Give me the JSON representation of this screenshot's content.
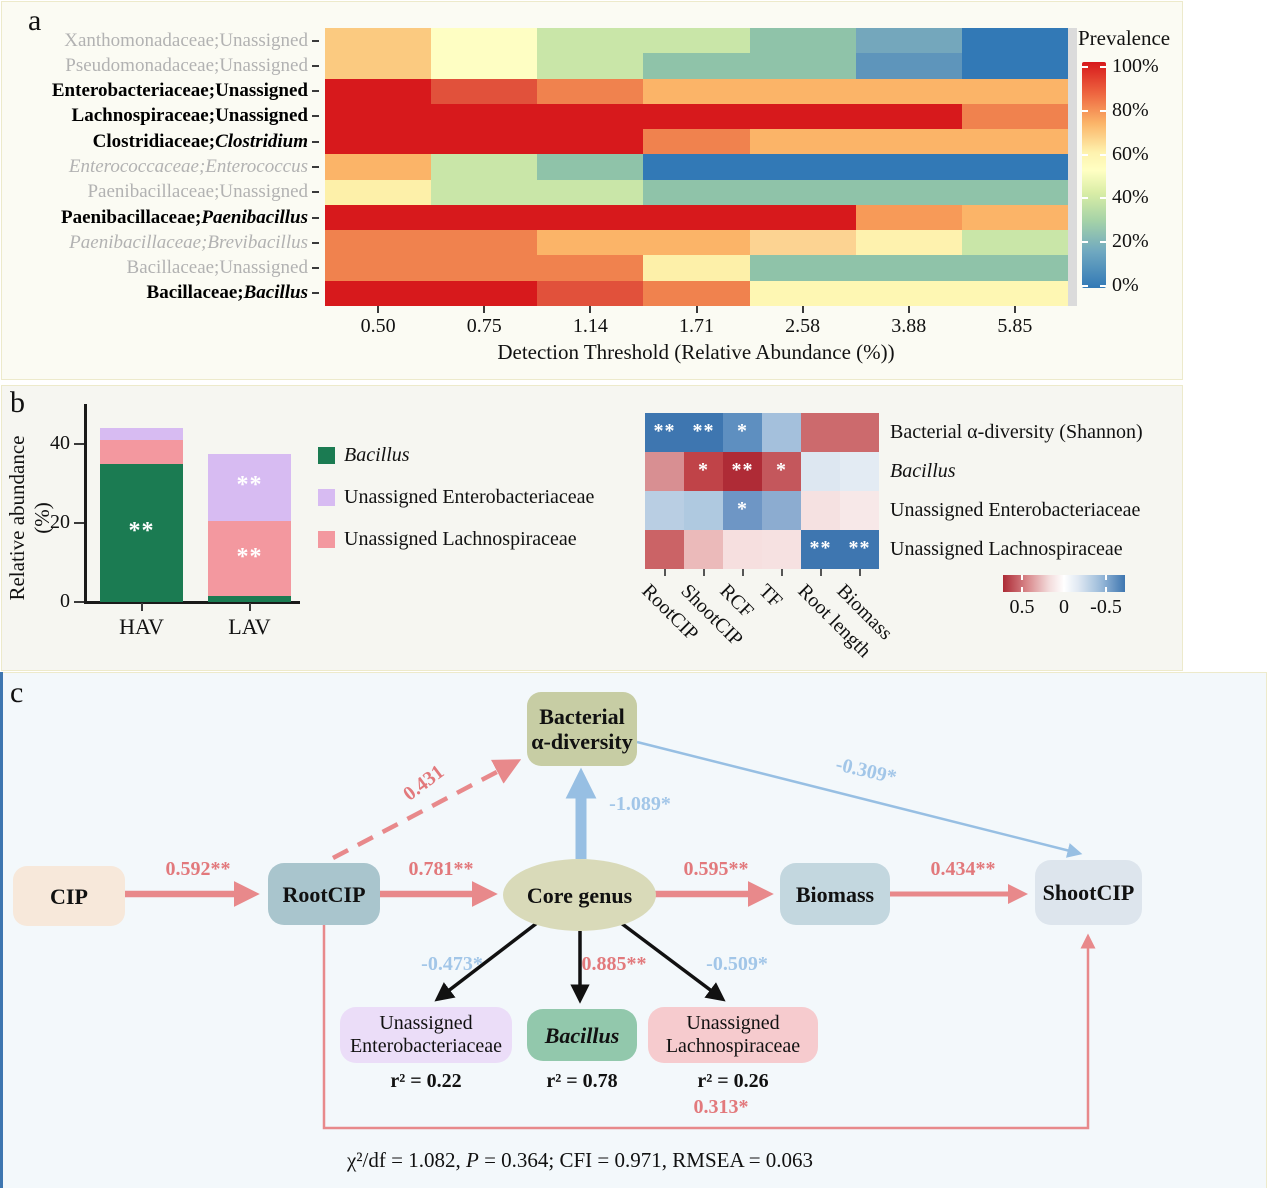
{
  "panel_a": {
    "label": "a",
    "rows": [
      {
        "style": "dim",
        "parts": [
          {
            "t": "Xanthomonadaceae;Unassigned"
          }
        ]
      },
      {
        "style": "dim",
        "parts": [
          {
            "t": "Pseudomonadaceae;Unassigned"
          }
        ]
      },
      {
        "style": "bold",
        "parts": [
          {
            "t": "Enterobacteriaceae;Unassigned"
          }
        ]
      },
      {
        "style": "bold",
        "parts": [
          {
            "t": "Lachnospiraceae;Unassigned"
          }
        ]
      },
      {
        "style": "bold",
        "parts": [
          {
            "t": "Clostridiaceae;"
          },
          {
            "t": "Clostridium",
            "i": true
          }
        ]
      },
      {
        "style": "dim",
        "parts": [
          {
            "t": "Enterococcaceae;Enterococcus",
            "i": true
          }
        ]
      },
      {
        "style": "dim",
        "parts": [
          {
            "t": "Paenibacillaceae;Unassigned"
          }
        ]
      },
      {
        "style": "bold",
        "parts": [
          {
            "t": "Paenibacillaceae;"
          },
          {
            "t": "Paenibacillus",
            "i": true
          }
        ]
      },
      {
        "style": "dim",
        "parts": [
          {
            "t": "Paenibacillaceae;Brevibacillus",
            "i": true
          }
        ]
      },
      {
        "style": "dim",
        "parts": [
          {
            "t": "Bacillaceae;Unassigned"
          }
        ]
      },
      {
        "style": "bold",
        "parts": [
          {
            "t": "Bacillaceae;"
          },
          {
            "t": "Bacillus",
            "i": true
          }
        ]
      }
    ],
    "cell_colors": [
      [
        "#FBCA80",
        "#FEFEC3",
        "#C9E6A8",
        "#C9E6A8",
        "#8FC3A9",
        "#74A7BC",
        "#3279B6"
      ],
      [
        "#FBCA80",
        "#FEFEC3",
        "#C9E6A8",
        "#8FC3A9",
        "#8FC3A9",
        "#5E95BB",
        "#3279B6"
      ],
      [
        "#D7191C",
        "#E1513B",
        "#F0824E",
        "#FBB468",
        "#FBB468",
        "#FBB468",
        "#FBB468"
      ],
      [
        "#D7191C",
        "#D7191C",
        "#D7191C",
        "#D7191C",
        "#D7191C",
        "#D7191C",
        "#F0824E"
      ],
      [
        "#D7191C",
        "#D7191C",
        "#D7191C",
        "#F0824E",
        "#FBB468",
        "#FBB468",
        "#FBB468"
      ],
      [
        "#FBB468",
        "#C9E6A8",
        "#8FC3A9",
        "#3279B6",
        "#3279B6",
        "#3279B6",
        "#3279B6"
      ],
      [
        "#FDF0A9",
        "#C9E6A8",
        "#C9E6A8",
        "#8FC3A9",
        "#8FC3A9",
        "#8FC3A9",
        "#8FC3A9"
      ],
      [
        "#D7191C",
        "#D7191C",
        "#D7191C",
        "#D7191C",
        "#D7191C",
        "#F79A58",
        "#FBB468"
      ],
      [
        "#F0824E",
        "#F0824E",
        "#FBB468",
        "#FBB468",
        "#FCD392",
        "#FEF2AE",
        "#C9E6A8"
      ],
      [
        "#F0824E",
        "#F0824E",
        "#F0824E",
        "#FDF0A9",
        "#8FC3A9",
        "#8FC3A9",
        "#8FC3A9"
      ],
      [
        "#D7191C",
        "#D7191C",
        "#E1513B",
        "#F0824E",
        "#FEF7B3",
        "#FEF7B3",
        "#FEF7B3"
      ]
    ],
    "x_ticks": [
      "0.50",
      "0.75",
      "1.14",
      "1.71",
      "2.58",
      "3.88",
      "5.85"
    ],
    "x_title": "Detection Threshold (Relative Abundance (%))",
    "colorbar": {
      "title": "Prevalence",
      "labels": [
        "100%",
        "80%",
        "60%",
        "40%",
        "20%",
        "0%"
      ]
    }
  },
  "panel_b": {
    "label": "b",
    "bar": {
      "y_title": "Relative abundance (%)",
      "y_ticks": [
        "40",
        "20",
        "0"
      ],
      "y_tick_values": [
        40,
        20,
        0
      ],
      "categories": [
        "HAV",
        "LAV"
      ],
      "series": [
        {
          "name": "Bacillus",
          "color": "#1B7B52",
          "values": [
            35,
            1.5
          ],
          "sig": [
            "**",
            ""
          ]
        },
        {
          "name": "Unassigned Lachnospiraceae",
          "color": "#F3989F",
          "values": [
            6,
            19
          ],
          "sig": [
            "",
            "**"
          ]
        },
        {
          "name": "Unassigned Enterobacteriaceae",
          "color": "#D7BBF2",
          "values": [
            3,
            17
          ],
          "sig": [
            "",
            "**"
          ]
        }
      ]
    },
    "legend": [
      {
        "label": "Bacillus",
        "color": "#1B7B52",
        "italic": true
      },
      {
        "label": "Unassigned Enterobacteriaceae",
        "color": "#D7BBF2",
        "italic": false
      },
      {
        "label": "Unassigned Lachnospiraceae",
        "color": "#F3989F",
        "italic": false
      }
    ],
    "corr": {
      "row_labels": [
        "Bacterial α-diversity (Shannon)",
        "Bacillus",
        "Unassigned Enterobacteriaceae",
        "Unassigned Lachnospiraceae"
      ],
      "row_italic": [
        false,
        true,
        false,
        false
      ],
      "col_labels": [
        "RootCIP",
        "ShootCIP",
        "RCF",
        "TF",
        "Root length",
        "Biomass"
      ],
      "cell_colors": [
        [
          "#3E76B0",
          "#3E76B0",
          "#5E8FC0",
          "#A4C0DC",
          "#CC6A6D",
          "#CC6A6D"
        ],
        [
          "#D88F92",
          "#C04348",
          "#AF2B36",
          "#C4575C",
          "#DDE7F1",
          "#E3EBF3"
        ],
        [
          "#B9CEE3",
          "#AFC9E0",
          "#6E96C5",
          "#8CACD0",
          "#F5E1E1",
          "#F7E8E8"
        ],
        [
          "#CB6366",
          "#EBBABA",
          "#F6DFDF",
          "#F6E1E1",
          "#3E76B0",
          "#3E76B0"
        ]
      ],
      "sig": [
        [
          "**",
          "**",
          "*",
          "",
          "",
          ""
        ],
        [
          "",
          "*",
          "**",
          "*",
          "",
          ""
        ],
        [
          "",
          "",
          "*",
          "",
          "",
          ""
        ],
        [
          "",
          "",
          "",
          "",
          "**",
          "**"
        ]
      ],
      "colorbar_labels": [
        "0.5",
        "0",
        "-0.5"
      ]
    }
  },
  "panel_c": {
    "label": "c",
    "nodes": {
      "cip": {
        "lines": [
          "CIP"
        ],
        "color": "#F7E8DA"
      },
      "rootcip": {
        "lines": [
          "RootCIP"
        ],
        "color": "#A9C5CD"
      },
      "core": {
        "lines": [
          "Core genus"
        ],
        "color": "#D9DAB9"
      },
      "alpha": {
        "lines": [
          "Bacterial",
          "α-diversity"
        ],
        "color": "#C7CDA4"
      },
      "biomass": {
        "lines": [
          "Biomass"
        ],
        "color": "#C3D7DF"
      },
      "shootcip": {
        "lines": [
          "ShootCIP"
        ],
        "color": "#DDE5ED"
      },
      "entero": {
        "lines": [
          "Unassigned",
          "Enterobacteriaceae"
        ],
        "color": "#EBDDF8"
      },
      "bacillus": {
        "lines": [
          "Bacillus"
        ],
        "color": "#92C8AC",
        "italic": true
      },
      "lachno": {
        "lines": [
          "Unassigned",
          "Lachnospiraceae"
        ],
        "color": "#F6CBCE"
      }
    },
    "edges": [
      {
        "from": "CIP",
        "to": "RootCIP",
        "label": "0.592**",
        "sign": "pos"
      },
      {
        "from": "RootCIP",
        "to": "Core genus",
        "label": "0.781**",
        "sign": "pos"
      },
      {
        "from": "Core genus",
        "to": "Biomass",
        "label": "0.595**",
        "sign": "pos"
      },
      {
        "from": "Biomass",
        "to": "ShootCIP",
        "label": "0.434**",
        "sign": "pos"
      },
      {
        "from": "RootCIP",
        "to": "Bacterial α-diversity",
        "label": "0.431",
        "sign": "pos",
        "style": "dashed"
      },
      {
        "from": "Core genus",
        "to": "Bacterial α-diversity",
        "label": "-1.089*",
        "sign": "neg"
      },
      {
        "from": "Bacterial α-diversity",
        "to": "ShootCIP",
        "label": "-0.309*",
        "sign": "neg"
      },
      {
        "from": "Core genus",
        "to": "Unassigned Enterobacteriaceae",
        "label": "-0.473*",
        "sign": "neg"
      },
      {
        "from": "Core genus",
        "to": "Bacillus",
        "label": "0.885**",
        "sign": "pos"
      },
      {
        "from": "Core genus",
        "to": "Unassigned Lachnospiraceae",
        "label": "-0.509*",
        "sign": "neg"
      },
      {
        "from": "RootCIP",
        "to": "ShootCIP",
        "label": "0.313*",
        "sign": "pos"
      }
    ],
    "r2": [
      "r² = 0.22",
      "r² = 0.78",
      "r² = 0.26"
    ],
    "fit_parts": [
      {
        "t": "χ²/df = 1.082, "
      },
      {
        "t": "P",
        "i": true
      },
      {
        "t": " = 0.364; CFI = 0.971, RMSEA = 0.063"
      }
    ]
  },
  "chart_data": [
    {
      "type": "heatmap",
      "title": "Core taxa prevalence vs detection threshold",
      "xlabel": "Detection Threshold (Relative Abundance (%))",
      "x": [
        "0.50",
        "0.75",
        "1.14",
        "1.71",
        "2.58",
        "3.88",
        "5.85"
      ],
      "y": [
        "Xanthomonadaceae;Unassigned",
        "Pseudomonadaceae;Unassigned",
        "Enterobacteriaceae;Unassigned",
        "Lachnospiraceae;Unassigned",
        "Clostridiaceae;Clostridium",
        "Enterococcaceae;Enterococcus",
        "Paenibacillaceae;Unassigned",
        "Paenibacillaceae;Paenibacillus",
        "Paenibacillaceae;Brevibacillus",
        "Bacillaceae;Unassigned",
        "Bacillaceae;Bacillus"
      ],
      "values_percent": [
        [
          68,
          50,
          38,
          38,
          22,
          12,
          2
        ],
        [
          68,
          50,
          38,
          22,
          22,
          8,
          2
        ],
        [
          100,
          92,
          82,
          72,
          72,
          72,
          72
        ],
        [
          100,
          100,
          100,
          100,
          100,
          100,
          82
        ],
        [
          100,
          100,
          100,
          82,
          72,
          72,
          72
        ],
        [
          72,
          38,
          22,
          2,
          2,
          2,
          2
        ],
        [
          57,
          38,
          38,
          22,
          22,
          22,
          22
        ],
        [
          100,
          100,
          100,
          100,
          100,
          78,
          72
        ],
        [
          82,
          82,
          72,
          72,
          64,
          56,
          38
        ],
        [
          82,
          82,
          82,
          57,
          22,
          22,
          22
        ],
        [
          100,
          100,
          92,
          82,
          54,
          54,
          54
        ]
      ],
      "legend": {
        "title": "Prevalence",
        "range": [
          "0%",
          "100%"
        ],
        "position": "right"
      }
    },
    {
      "type": "bar",
      "subtype": "stacked",
      "categories": [
        "HAV",
        "LAV"
      ],
      "series": [
        {
          "name": "Bacillus",
          "values": [
            35,
            1.5
          ]
        },
        {
          "name": "Unassigned Lachnospiraceae",
          "values": [
            6,
            19
          ]
        },
        {
          "name": "Unassigned Enterobacteriaceae",
          "values": [
            3,
            17
          ]
        }
      ],
      "significance": [
        {
          "category": "HAV",
          "series": "Bacillus",
          "mark": "**"
        },
        {
          "category": "LAV",
          "series": "Unassigned Enterobacteriaceae",
          "mark": "**"
        },
        {
          "category": "LAV",
          "series": "Unassigned Lachnospiraceae",
          "mark": "**"
        }
      ],
      "ylabel": "Relative abundance (%)",
      "ylim": [
        0,
        48
      ],
      "y_ticks": [
        0,
        20,
        40
      ]
    },
    {
      "type": "heatmap",
      "subtype": "correlation",
      "x": [
        "RootCIP",
        "ShootCIP",
        "RCF",
        "TF",
        "Root length",
        "Biomass"
      ],
      "y": [
        "Bacterial α-diversity (Shannon)",
        "Bacillus",
        "Unassigned Enterobacteriaceae",
        "Unassigned Lachnospiraceae"
      ],
      "r_values": [
        [
          -0.45,
          -0.45,
          -0.35,
          -0.15,
          0.3,
          0.3
        ],
        [
          0.25,
          0.42,
          0.5,
          0.4,
          -0.08,
          -0.05
        ],
        [
          -0.18,
          -0.2,
          -0.35,
          -0.28,
          0.06,
          0.04
        ],
        [
          0.32,
          0.15,
          0.07,
          0.06,
          -0.45,
          -0.45
        ]
      ],
      "significance": [
        [
          "**",
          "**",
          "*",
          "",
          "",
          ""
        ],
        [
          "",
          "*",
          "**",
          "*",
          "",
          ""
        ],
        [
          "",
          "",
          "*",
          "",
          "",
          ""
        ],
        [
          "",
          "",
          "",
          "",
          "**",
          "**"
        ]
      ],
      "colorbar": {
        "labels": [
          "0.5",
          "0",
          "-0.5"
        ],
        "positive_color": "red",
        "negative_color": "blue"
      }
    }
  ]
}
